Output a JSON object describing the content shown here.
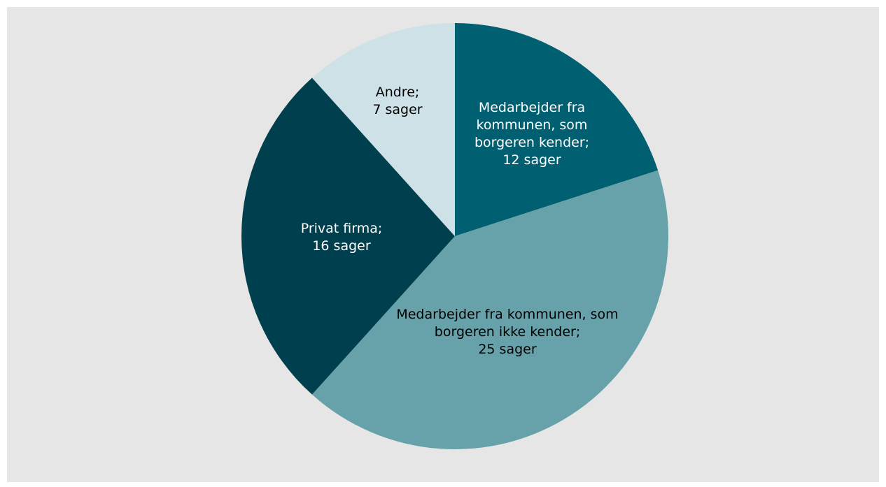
{
  "chart_data": {
    "type": "pie",
    "categories": [
      "Medarbejder fra kommunen, som borgeren kender;",
      "Medarbejder fra kommunen, som borgeren ikke kender;",
      "Privat firma;",
      "Andre;"
    ],
    "values": [
      12,
      25,
      16,
      7
    ],
    "value_labels": [
      "12 sager",
      "25 sager",
      "16 sager",
      "7 sager"
    ],
    "colors": [
      "#005f70",
      "#67a2aa",
      "#003f4d",
      "#cde1e6"
    ]
  }
}
